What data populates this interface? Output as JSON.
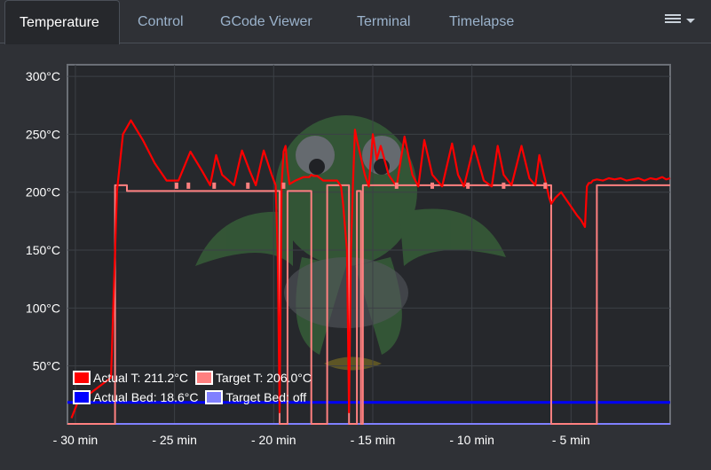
{
  "tabs": [
    {
      "label": "Temperature",
      "active": true
    },
    {
      "label": "Control",
      "active": false
    },
    {
      "label": "GCode Viewer",
      "active": false
    },
    {
      "label": "Terminal",
      "active": false
    },
    {
      "label": "Timelapse",
      "active": false
    }
  ],
  "menu_icon": "hamburger-menu-icon",
  "colors": {
    "background": "#2f3136",
    "plot_background": "#26282c",
    "actual_tool": "#ff0000",
    "target_tool": "#ff8080",
    "actual_bed": "#0000ff",
    "target_bed": "#8080ff"
  },
  "chart_data": {
    "type": "line",
    "title": "",
    "xlabel": "",
    "ylabel": "",
    "xlim": [
      -30.4,
      0
    ],
    "ylim": [
      0,
      310
    ],
    "x_ticks": [
      -30,
      -25,
      -20,
      -15,
      -10,
      -5
    ],
    "x_tick_labels": [
      "- 30 min",
      "- 25 min",
      "- 20 min",
      "- 15 min",
      "- 10 min",
      "- 5 min"
    ],
    "y_ticks": [
      50,
      100,
      150,
      200,
      250,
      300
    ],
    "y_tick_labels": [
      "50°C",
      "100°C",
      "150°C",
      "200°C",
      "250°C",
      "300°C"
    ],
    "grid": true,
    "legend_position": "bottom-left",
    "legend": [
      {
        "label": "Actual T: 211.2°C",
        "color": "#ff0000"
      },
      {
        "label": "Target T: 206.0°C",
        "color": "#ff8080"
      },
      {
        "label": "Actual Bed: 18.6°C",
        "color": "#0000ff"
      },
      {
        "label": "Target Bed: off",
        "color": "#8080ff"
      }
    ],
    "series": [
      {
        "name": "Actual T",
        "color": "#ff0000",
        "x": [
          -30.2,
          -29.9,
          -28.2,
          -27.9,
          -27.6,
          -27.2,
          -26.6,
          -26.0,
          -25.4,
          -24.8,
          -24.2,
          -23.6,
          -23.2,
          -22.9,
          -22.6,
          -22.0,
          -21.6,
          -21.2,
          -20.9,
          -20.5,
          -20.1,
          -19.9,
          -19.8,
          -19.7,
          -19.6,
          -19.5,
          -19.4,
          -19.3,
          -19.2,
          -18.9,
          -18.5,
          -18.2,
          -18.1,
          -18.0,
          -17.8,
          -17.5,
          -17.2,
          -16.8,
          -16.6,
          -16.5,
          -16.3,
          -16.2,
          -16.1,
          -16.0,
          -15.9,
          -15.8,
          -15.6,
          -15.4,
          -15.2,
          -15.0,
          -14.9,
          -14.8,
          -14.6,
          -14.2,
          -13.8,
          -13.4,
          -13.0,
          -12.7,
          -12.4,
          -12.0,
          -11.5,
          -11.0,
          -10.7,
          -10.4,
          -9.9,
          -9.4,
          -9.0,
          -8.7,
          -8.4,
          -8.0,
          -7.5,
          -7.1,
          -6.8,
          -6.6,
          -6.3,
          -6.1,
          -6.0,
          -5.8,
          -5.5,
          -5.1,
          -4.7,
          -4.5,
          -4.3,
          -4.2,
          -4.1,
          -4.0,
          -3.9,
          -3.7,
          -3.4,
          -3.1,
          -2.8,
          -2.5,
          -2.2,
          -1.9,
          -1.6,
          -1.3,
          -1.0,
          -0.7,
          -0.4,
          -0.2,
          0.0
        ],
        "y": [
          5,
          18,
          40,
          201,
          250,
          262,
          245,
          225,
          210,
          210,
          235,
          218,
          206,
          232,
          215,
          206,
          236,
          218,
          206,
          236,
          215,
          206,
          150,
          10,
          206,
          235,
          240,
          220,
          207,
          210,
          213,
          213,
          215,
          214,
          214,
          210,
          210,
          210,
          205,
          190,
          150,
          10,
          150,
          206,
          254,
          245,
          230,
          215,
          205,
          250,
          240,
          228,
          240,
          215,
          205,
          248,
          215,
          205,
          245,
          215,
          205,
          242,
          215,
          205,
          240,
          210,
          205,
          240,
          215,
          206,
          240,
          212,
          206,
          232,
          210,
          195,
          190,
          195,
          200,
          190,
          180,
          176,
          170,
          205,
          208,
          208,
          210,
          211,
          210,
          212,
          211,
          212,
          210,
          211,
          212,
          210,
          212,
          211,
          213,
          211,
          212
        ]
      },
      {
        "name": "Target T",
        "color": "#ff8080",
        "x": [
          -30.4,
          -28.0,
          -28.0,
          -27.4,
          -27.4,
          -19.7,
          -19.7,
          -19.3,
          -19.3,
          -18.1,
          -18.1,
          -17.3,
          -17.3,
          -16.2,
          -16.2,
          -15.8,
          -15.8,
          -15.6,
          -15.6,
          -15.5,
          -15.5,
          -6.0,
          -6.0,
          -3.7,
          -3.7,
          0.0
        ],
        "y": [
          0,
          0,
          206,
          206,
          201,
          201,
          0,
          0,
          201,
          201,
          0,
          0,
          206,
          206,
          0,
          0,
          201,
          201,
          0,
          0,
          206,
          206,
          0,
          0,
          206,
          206
        ]
      },
      {
        "name": "Actual Bed",
        "color": "#0000ff",
        "x": [
          -30.4,
          0.0
        ],
        "y": [
          18.6,
          18.6
        ]
      },
      {
        "name": "Target Bed",
        "color": "#8080ff",
        "x": [
          -30.4,
          0.0
        ],
        "y": [
          0,
          0
        ]
      }
    ],
    "markers": {
      "series": "Target T",
      "x": [
        -24.9,
        -24.3,
        -23.0,
        -21.3,
        -19.5,
        -13.8,
        -12.0,
        -10.2,
        -8.4,
        -6.3
      ],
      "y": [
        206,
        206,
        206,
        206,
        206,
        206,
        206,
        206,
        206,
        206
      ]
    }
  }
}
